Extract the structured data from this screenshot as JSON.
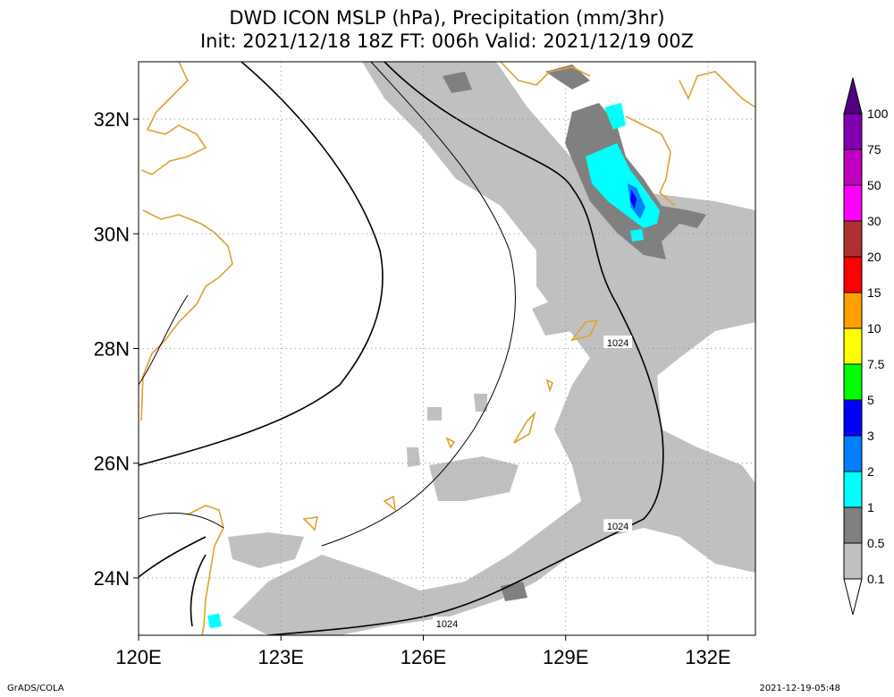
{
  "header": {
    "title_line1": "DWD ICON MSLP (hPa), Precipitation (mm/3hr)",
    "title_line2": "Init: 2021/12/18 18Z  FT: 006h  Valid: 2021/12/19 00Z"
  },
  "footer": {
    "left": "GrADS/COLA",
    "right": "2021-12-19-05:48"
  },
  "chart_data": {
    "type": "heatmap",
    "title": "DWD ICON MSLP (hPa), Precipitation (mm/3hr)",
    "subtitle": "Init: 2021/12/18 18Z  FT: 006h  Valid: 2021/12/19 00Z",
    "x_range": [
      120,
      133
    ],
    "y_range": [
      23,
      33
    ],
    "x_ticks": [
      {
        "value": 120,
        "label": "120E"
      },
      {
        "value": 123,
        "label": "123E"
      },
      {
        "value": 126,
        "label": "126E"
      },
      {
        "value": 129,
        "label": "129E"
      },
      {
        "value": 132,
        "label": "132E"
      }
    ],
    "y_ticks": [
      {
        "value": 24,
        "label": "24N"
      },
      {
        "value": 26,
        "label": "26N"
      },
      {
        "value": 28,
        "label": "28N"
      },
      {
        "value": 30,
        "label": "30N"
      },
      {
        "value": 32,
        "label": "32N"
      }
    ],
    "grid": true,
    "colorbar": {
      "placement": "right",
      "levels": [
        {
          "label": "0.1",
          "color": "#ffffff"
        },
        {
          "label": "0.5",
          "color": "#c0c0c0"
        },
        {
          "label": "1",
          "color": "#808080"
        },
        {
          "label": "2",
          "color": "#00ffff"
        },
        {
          "label": "3",
          "color": "#0080ff"
        },
        {
          "label": "5",
          "color": "#0000ff"
        },
        {
          "label": "7.5",
          "color": "#00ff00"
        },
        {
          "label": "10",
          "color": "#ffff00"
        },
        {
          "label": "15",
          "color": "#ffa000"
        },
        {
          "label": "20",
          "color": "#ff0000"
        },
        {
          "label": "30",
          "color": "#b03030"
        },
        {
          "label": "50",
          "color": "#ff00ff"
        },
        {
          "label": "75",
          "color": "#c000c0"
        },
        {
          "label": "100",
          "color": "#8000b0"
        }
      ],
      "top_arrow_color": "#500080"
    },
    "isobar_labels": [
      {
        "text": "1024",
        "lon": 130.1,
        "lat": 28.1
      },
      {
        "text": "1024",
        "lon": 130.1,
        "lat": 24.9
      },
      {
        "text": "1024",
        "lon": 126.5,
        "lat": 23.2
      }
    ],
    "colors": {
      "coastline": "#e0a030",
      "isobar": "#000000",
      "light_precip": "#c0c0c0",
      "medium_precip": "#808080",
      "heavy_precip": "#00ffff",
      "heavier_precip": "#0080ff",
      "heaviest_precip": "#0000ff"
    }
  }
}
